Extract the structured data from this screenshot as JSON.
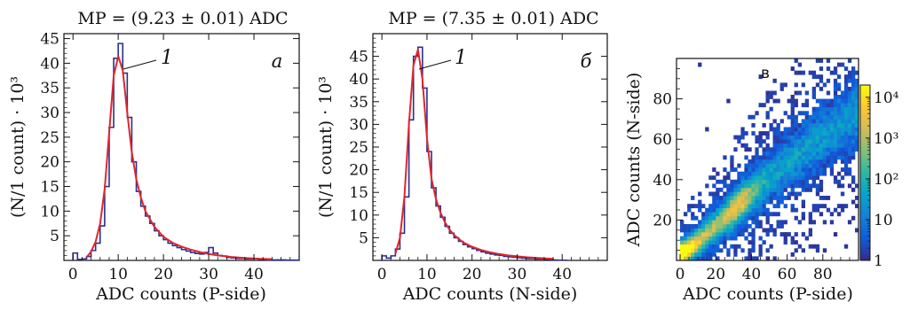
{
  "chart_data": [
    {
      "type": "line",
      "panel": "a",
      "title": "MP = (9.23 ± 0.01) ADC",
      "xlabel": "ADC counts (P-side)",
      "ylabel": "(N/1 count) · 10³",
      "panel_letter": "a",
      "annotation": "1",
      "xlim": [
        -2,
        50
      ],
      "ylim": [
        0,
        46
      ],
      "xticks": [
        0,
        10,
        20,
        30,
        40
      ],
      "yticks": [
        5,
        10,
        15,
        20,
        25,
        30,
        35,
        40,
        45
      ],
      "grid": false,
      "series": [
        {
          "kind": "histogram",
          "color": "#2b2f8f",
          "x": [
            0,
            1,
            2,
            3,
            4,
            5,
            6,
            7,
            8,
            9,
            10,
            11,
            12,
            13,
            14,
            15,
            16,
            17,
            18,
            19,
            20,
            21,
            22,
            23,
            24,
            25,
            26,
            27,
            28,
            29,
            30,
            31,
            32,
            33,
            34,
            35,
            36,
            37,
            38,
            39,
            40,
            41,
            42,
            43,
            44,
            45,
            46,
            47,
            48,
            49
          ],
          "values": [
            1.5,
            0.2,
            0.3,
            0.8,
            2,
            3.5,
            7,
            15,
            27,
            41,
            44,
            38,
            29,
            20,
            14,
            11,
            9,
            7.5,
            6,
            5,
            4.2,
            3.5,
            3,
            2.6,
            2.2,
            1.9,
            1.6,
            1.4,
            1.3,
            1.6,
            2.6,
            1.5,
            1,
            0.9,
            0.6,
            0.5,
            0.4,
            0.4,
            0.3,
            0.3,
            0.4,
            0.2,
            0.2,
            0.1,
            0.1,
            0.1,
            0.1,
            0.05,
            0.05,
            0.05
          ]
        },
        {
          "kind": "fit",
          "color": "#e0262b",
          "x": [
            3,
            4,
            5,
            6,
            7,
            8,
            9,
            10,
            11,
            12,
            13,
            14,
            15,
            16,
            18,
            20,
            22,
            24,
            26,
            28,
            30,
            32,
            35,
            38,
            41,
            44
          ],
          "values": [
            0.6,
            1.8,
            3.8,
            7.5,
            14.5,
            26,
            37.5,
            41.4,
            38.5,
            30,
            22,
            16.5,
            12.8,
            10,
            6.8,
            4.8,
            3.6,
            2.8,
            2.2,
            1.7,
            1.3,
            1,
            0.7,
            0.5,
            0.35,
            0.25
          ]
        }
      ]
    },
    {
      "type": "line",
      "panel": "b",
      "title": "MP = (7.35 ± 0.01) ADC",
      "xlabel": "ADC counts (N-side)",
      "ylabel": "(N/1 count) · 10³",
      "panel_letter": "б",
      "annotation": "1",
      "xlim": [
        -2,
        50
      ],
      "ylim": [
        0,
        50
      ],
      "xticks": [
        0,
        10,
        20,
        30,
        40
      ],
      "yticks": [
        5,
        10,
        15,
        20,
        25,
        30,
        35,
        40,
        45
      ],
      "grid": false,
      "series": [
        {
          "kind": "histogram",
          "color": "#2b2f8f",
          "x": [
            0,
            1,
            2,
            3,
            4,
            5,
            6,
            7,
            8,
            9,
            10,
            11,
            12,
            13,
            14,
            15,
            16,
            17,
            18,
            19,
            20,
            21,
            22,
            23,
            24,
            25,
            26,
            27,
            28,
            29,
            30,
            31,
            32,
            33,
            34,
            35,
            36,
            37,
            38,
            39,
            40
          ],
          "values": [
            1,
            0.5,
            1,
            2.5,
            6,
            14,
            31,
            45,
            47,
            38,
            24,
            16,
            12,
            9.5,
            7.5,
            6,
            5,
            4.2,
            3.5,
            3,
            2.6,
            2.2,
            1.9,
            1.6,
            1.4,
            1.2,
            1.1,
            0.9,
            0.8,
            0.7,
            0.6,
            0.5,
            0.4,
            0.4,
            0.3,
            0.3,
            0.25,
            0.2,
            0.1,
            0.05,
            0.05
          ]
        },
        {
          "kind": "fit",
          "color": "#e0262b",
          "x": [
            3,
            4,
            5,
            6,
            7,
            8,
            9,
            10,
            11,
            12,
            13,
            14,
            15,
            16,
            18,
            20,
            22,
            24,
            26,
            28,
            30,
            32,
            35,
            38
          ],
          "values": [
            1.5,
            5,
            14,
            30,
            43,
            46.5,
            40,
            27,
            18,
            13.5,
            10.5,
            8.4,
            6.8,
            5.6,
            4,
            3,
            2.3,
            1.8,
            1.4,
            1.1,
            0.9,
            0.7,
            0.5,
            0.35
          ]
        }
      ]
    },
    {
      "type": "heatmap",
      "panel": "c",
      "xlabel": "ADC counts (P-side)",
      "ylabel": "ADC counts (N-side)",
      "panel_letter": "в",
      "xlim": [
        -2,
        100
      ],
      "ylim": [
        0,
        100
      ],
      "xticks": [
        0,
        20,
        40,
        60,
        80
      ],
      "yticks": [
        20,
        40,
        60,
        80
      ],
      "log_color_scale": true,
      "colorbar": {
        "range": [
          1,
          20000
        ],
        "ticks": [
          1,
          10,
          100,
          1000,
          10000
        ],
        "tick_labels": [
          "1",
          "10",
          "10²",
          "10³",
          "10⁴"
        ],
        "colors": [
          "#352a87",
          "#0f5cdd",
          "#1481d6",
          "#06a4ca",
          "#2eb7a4",
          "#87bf77",
          "#d1bb59",
          "#fec832",
          "#f9fb0e"
        ]
      },
      "ridge": {
        "x": [
          2,
          5,
          10,
          20,
          30,
          40,
          50,
          60,
          70,
          80,
          90,
          98
        ],
        "y": [
          4,
          6,
          9,
          17,
          25,
          33,
          41,
          48,
          55,
          61,
          67,
          72
        ]
      }
    }
  ]
}
